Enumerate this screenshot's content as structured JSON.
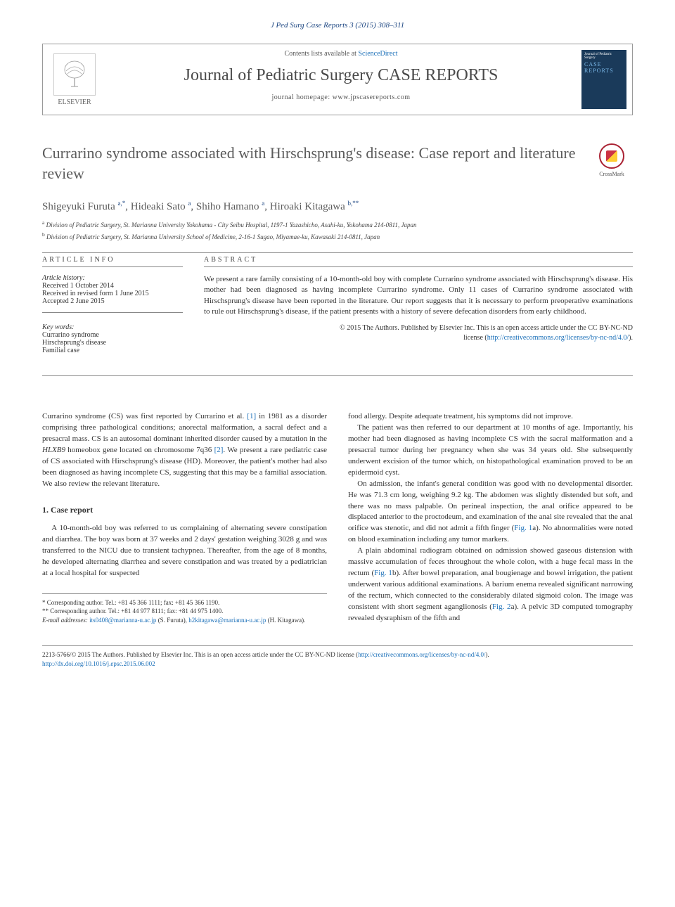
{
  "journal_ref": "J Ped Surg Case Reports 3 (2015) 308–311",
  "header": {
    "contents_prefix": "Contents lists available at ",
    "contents_link": "ScienceDirect",
    "journal_title": "Journal of Pediatric Surgery CASE REPORTS",
    "homepage_prefix": "journal homepage: ",
    "homepage": "www.jpscasereports.com",
    "elsevier": "ELSEVIER",
    "cover_line1": "Journal of Pediatric Surgery",
    "cover_line2": "CASE REPORTS"
  },
  "title": "Currarino syndrome associated with Hirschsprung's disease: Case report and literature review",
  "crossmark": "CrossMark",
  "authors_html": "Shigeyuki Furuta <sup>a,*</sup>, Hideaki Sato <sup>a</sup>, Shiho Hamano <sup>a</sup>, Hiroaki Kitagawa <sup>b,**</sup>",
  "affiliations": {
    "a": "Division of Pediatric Surgery, St. Marianna University Yokohama - City Seibu Hospital, 1197-1 Yazashicho, Asahi-ku, Yokohama 214-0811, Japan",
    "b": "Division of Pediatric Surgery, St. Marianna University School of Medicine, 2-16-1 Sugao, Miyamae-ku, Kawasaki 214-0811, Japan"
  },
  "info_heading": "ARTICLE INFO",
  "abstract_heading": "ABSTRACT",
  "history": {
    "label": "Article history:",
    "received": "Received 1 October 2014",
    "revised": "Received in revised form 1 June 2015",
    "accepted": "Accepted 2 June 2015"
  },
  "keywords": {
    "label": "Key words:",
    "items": [
      "Currarino syndrome",
      "Hirschsprung's disease",
      "Familial case"
    ]
  },
  "abstract": "We present a rare family consisting of a 10-month-old boy with complete Currarino syndrome associated with Hirschsprung's disease. His mother had been diagnosed as having incomplete Currarino syndrome. Only 11 cases of Currarino syndrome associated with Hirschsprung's disease have been reported in the literature. Our report suggests that it is necessary to perform preoperative examinations to rule out Hirschsprung's disease, if the patient presents with a history of severe defecation disorders from early childhood.",
  "copyright_line1": "© 2015 The Authors. Published by Elsevier Inc. This is an open access article under the CC BY-NC-ND",
  "copyright_line2_prefix": "license (",
  "copyright_link": "http://creativecommons.org/licenses/by-nc-nd/4.0/",
  "copyright_line2_suffix": ").",
  "body": {
    "intro": "Currarino syndrome (CS) was first reported by Currarino et al. [1] in 1981 as a disorder comprising three pathological conditions; anorectal malformation, a sacral defect and a presacral mass. CS is an autosomal dominant inherited disorder caused by a mutation in the HLXB9 homeobox gene located on chromosome 7q36 [2]. We present a rare pediatric case of CS associated with Hirschsprung's disease (HD). Moreover, the patient's mother had also been diagnosed as having incomplete CS, suggesting that this may be a familial association. We also review the relevant literature.",
    "section1_heading": "1. Case report",
    "p1": "A 10-month-old boy was referred to us complaining of alternating severe constipation and diarrhea. The boy was born at 37 weeks and 2 days' gestation weighing 3028 g and was transferred to the NICU due to transient tachypnea. Thereafter, from the age of 8 months, he developed alternating diarrhea and severe constipation and was treated by a pediatrician at a local hospital for suspected ",
    "p1_cont": "food allergy. Despite adequate treatment, his symptoms did not improve.",
    "p2": "The patient was then referred to our department at 10 months of age. Importantly, his mother had been diagnosed as having incomplete CS with the sacral malformation and a presacral tumor during her pregnancy when she was 34 years old. She subsequently underwent excision of the tumor which, on histopathological examination proved to be an epidermoid cyst.",
    "p3": "On admission, the infant's general condition was good with no developmental disorder. He was 71.3 cm long, weighing 9.2 kg. The abdomen was slightly distended but soft, and there was no mass palpable. On perineal inspection, the anal orifice appeared to be displaced anterior to the proctodeum, and examination of the anal site revealed that the anal orifice was stenotic, and did not admit a fifth finger (Fig. 1a). No abnormalities were noted on blood examination including any tumor markers.",
    "p4": "A plain abdominal radiogram obtained on admission showed gaseous distension with massive accumulation of feces throughout the whole colon, with a huge fecal mass in the rectum (Fig. 1b). After bowel preparation, anal bougienage and bowel irrigation, the patient underwent various additional examinations. A barium enema revealed significant narrowing of the rectum, which connected to the considerably dilated sigmoid colon. The image was consistent with short segment aganglionosis (Fig. 2a). A pelvic 3D computed tomography revealed dysraphism of the fifth and"
  },
  "footnotes": {
    "corr1": "* Corresponding author. Tel.: +81 45 366 1111; fax: +81 45 366 1190.",
    "corr2": "** Corresponding author. Tel.: +81 44 977 8111; fax: +81 44 975 1400.",
    "email_label": "E-mail addresses: ",
    "email1": "its0408@marianna-u.ac.jp",
    "email1_name": " (S. Furuta), ",
    "email2": "h2kitagawa@marianna-u.ac.jp",
    "email2_name": " (H. Kitagawa)."
  },
  "footer": {
    "issn": "2213-5766/© 2015 The Authors. Published by Elsevier Inc. This is an open access article under the CC BY-NC-ND license (",
    "cc_link": "http://creativecommons.org/licenses/by-nc-nd/4.0/",
    "issn_suffix": ").",
    "doi_label": "http://dx.doi.org/10.1016/j.epsc.2015.06.002"
  },
  "colors": {
    "link": "#1a6fb8",
    "ref": "#1a4480",
    "heading": "#5b5b5b"
  }
}
